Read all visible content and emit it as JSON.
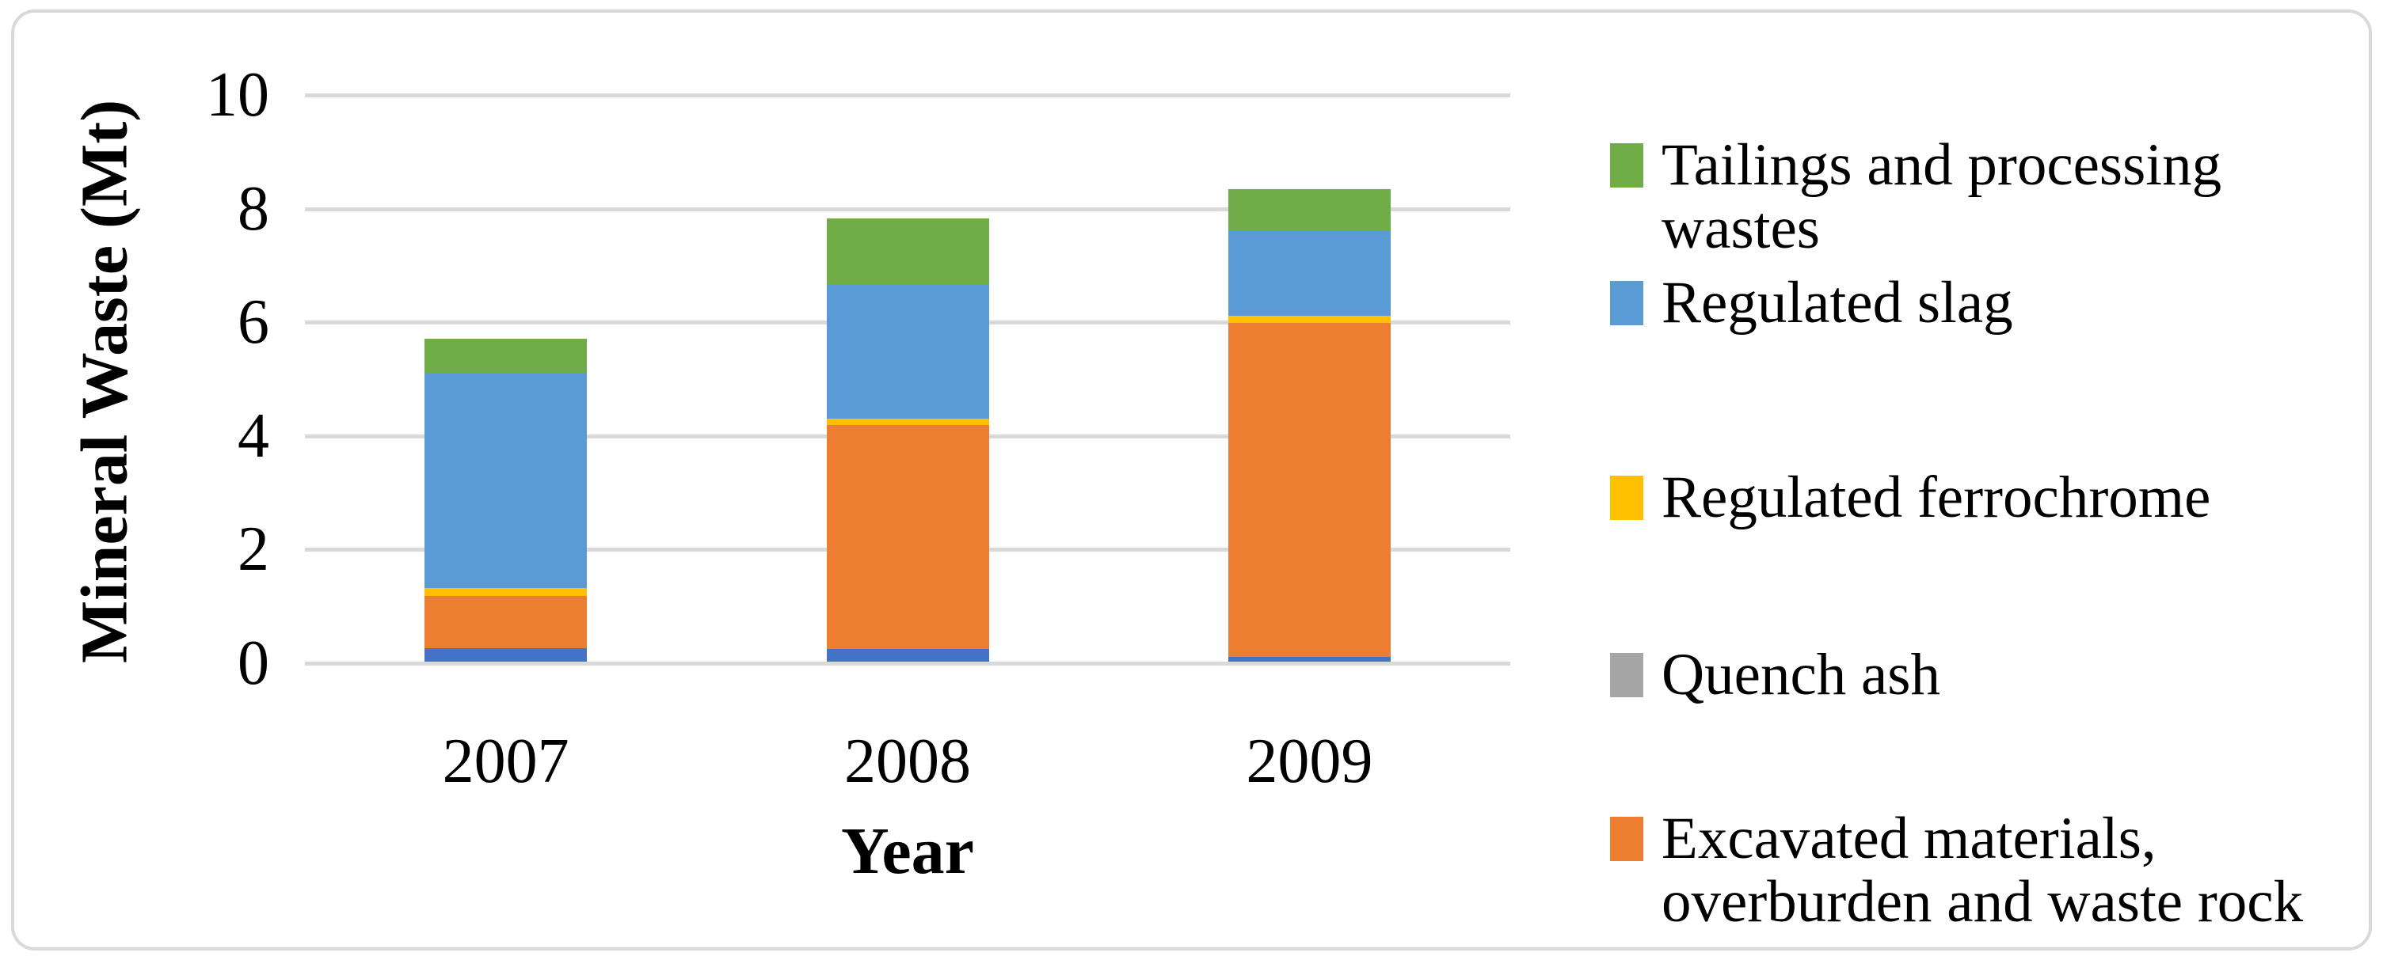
{
  "figure": {
    "background": "#FFFFFF",
    "border_color": "#D9D9D9",
    "grid_color": "#D9D9D9",
    "text_color": "#000000"
  },
  "axes": {
    "y_title": "Mineral Waste (Mt)",
    "x_title": "Year",
    "y_tick_labels": [
      "0",
      "2",
      "4",
      "6",
      "8",
      "10"
    ],
    "x_tick_labels": [
      "2007",
      "2008",
      "2009"
    ]
  },
  "legend": {
    "position": "right",
    "entries": [
      {
        "label": "Tailings and processing wastes",
        "color": "#70AD47"
      },
      {
        "label": "Regulated slag",
        "color": "#5B9BD5"
      },
      {
        "label": "Regulated ferrochrome",
        "color": "#FFC000"
      },
      {
        "label": "Quench ash",
        "color": "#A6A6A6"
      },
      {
        "label": "Excavated materials, overburden and waste rock",
        "color": "#ED7D31"
      }
    ]
  },
  "chart_data": {
    "type": "bar",
    "stacked": true,
    "title": "",
    "xlabel": "Year",
    "ylabel": "Mineral Waste (Mt)",
    "categories": [
      "2007",
      "2008",
      "2009"
    ],
    "ylim": [
      0,
      10
    ],
    "yticks": [
      0,
      2,
      4,
      6,
      8,
      10
    ],
    "grid": true,
    "legend_position": "right",
    "series": [
      {
        "name": "",
        "in_legend": false,
        "color": "#4472C4",
        "values": [
          0.24,
          0.22,
          0.08
        ]
      },
      {
        "name": "Excavated materials, overburden and waste rock",
        "in_legend": true,
        "color": "#ED7D31",
        "values": [
          0.91,
          3.95,
          5.88
        ]
      },
      {
        "name": "Quench ash",
        "in_legend": true,
        "color": "#A6A6A6",
        "values": [
          0,
          0,
          0
        ]
      },
      {
        "name": "Regulated ferrochrome",
        "in_legend": true,
        "color": "#FFC000",
        "values": [
          0.14,
          0.11,
          0.12
        ]
      },
      {
        "name": "Regulated slag",
        "in_legend": true,
        "color": "#5B9BD5",
        "values": [
          3.79,
          2.35,
          1.51
        ]
      },
      {
        "name": "Tailings and processing wastes",
        "in_legend": true,
        "color": "#70AD47",
        "values": [
          0.6,
          1.17,
          0.73
        ]
      }
    ],
    "stack_totals_mt": [
      5.7,
      7.8,
      8.3
    ]
  }
}
